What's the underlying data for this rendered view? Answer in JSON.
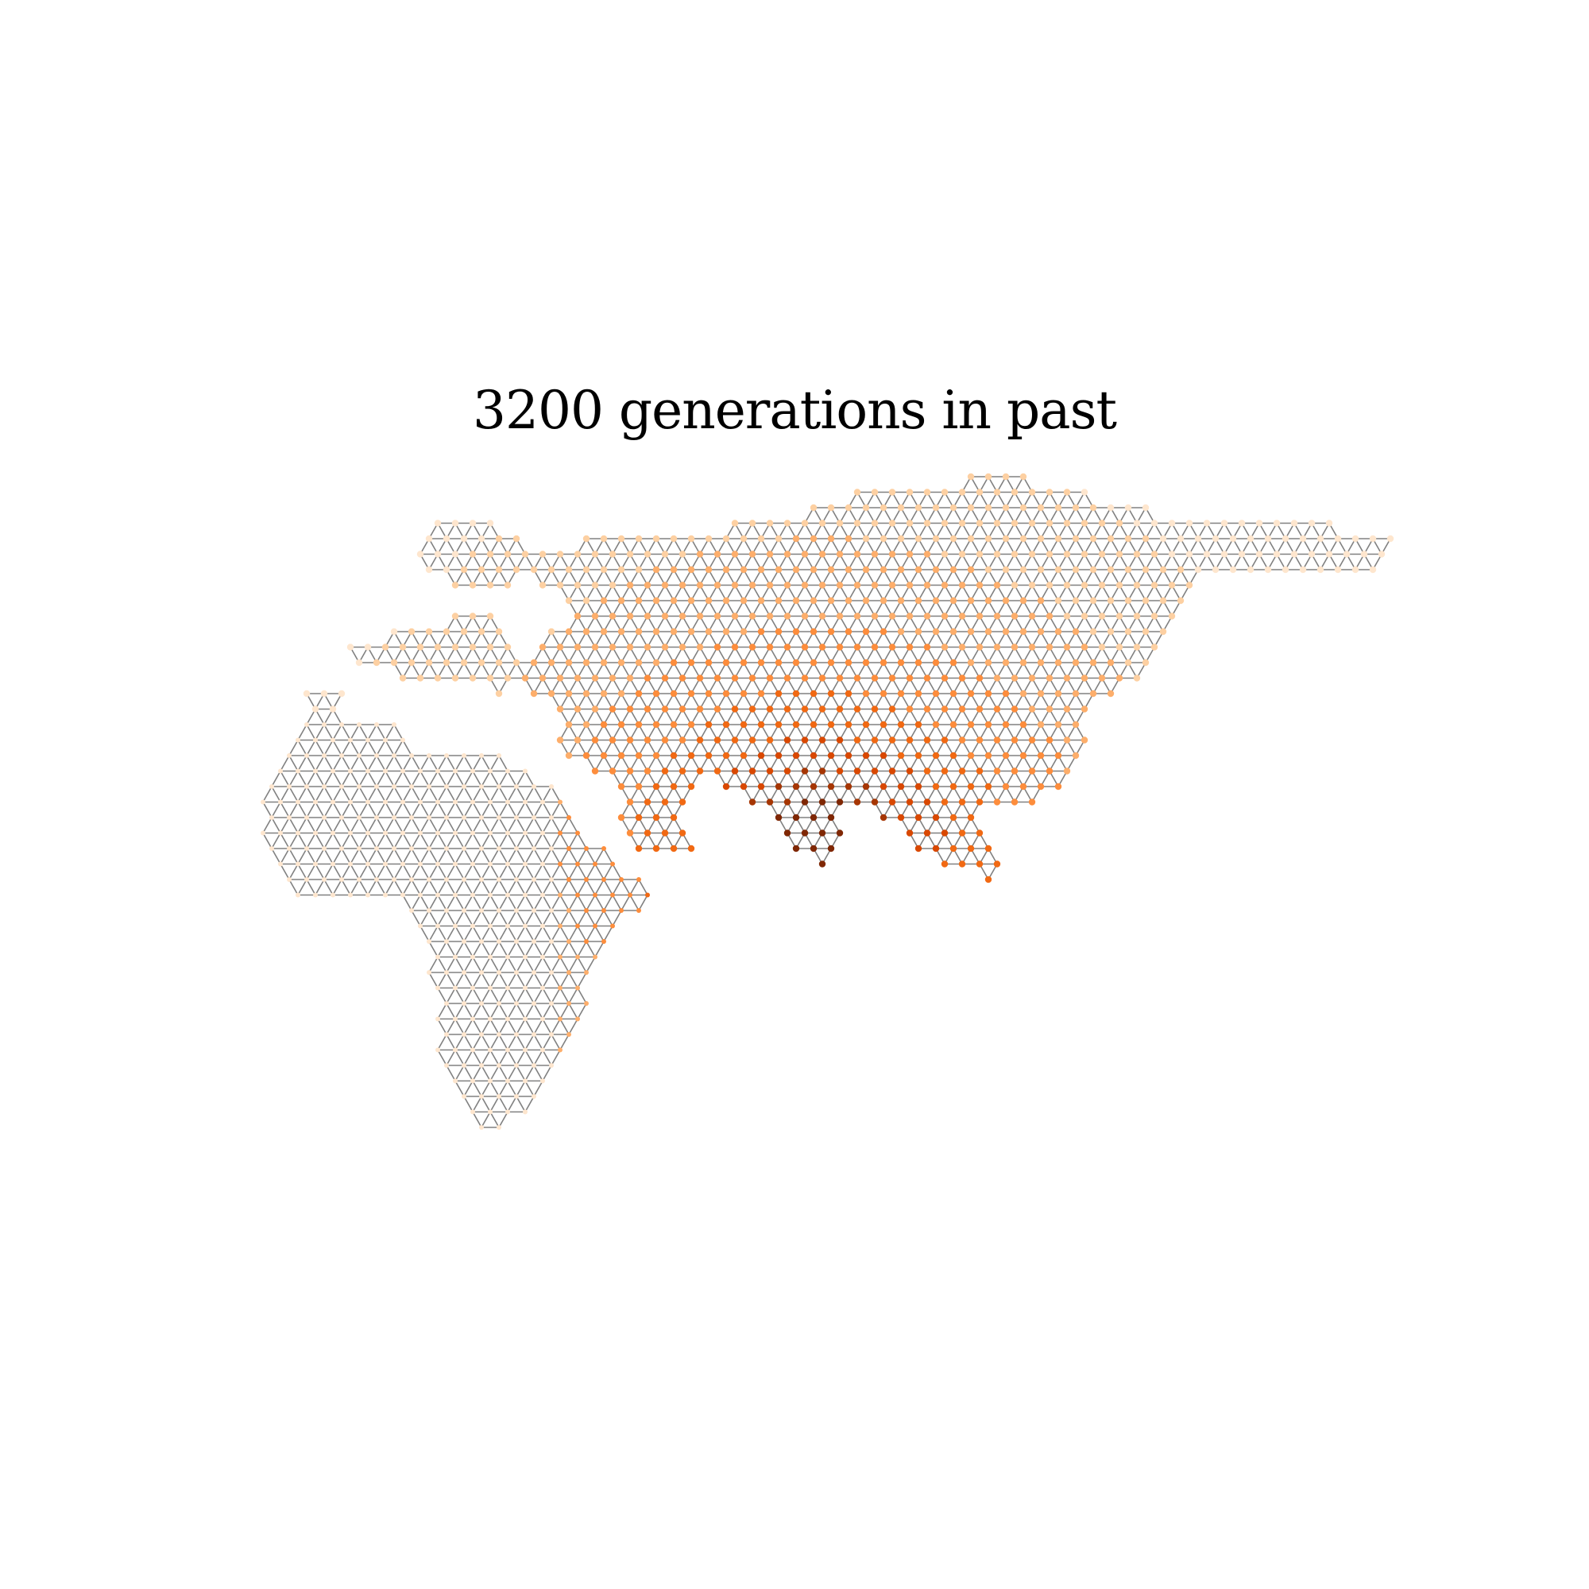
{
  "title": "3200 generations in past",
  "colors": {
    "background": "#ffffff",
    "edge": "#808080",
    "levels": [
      "#fee6ce",
      "#fdd0a2",
      "#fdae6b",
      "#fd8d3c",
      "#f16913",
      "#d94801",
      "#a63603",
      "#7f2704"
    ]
  },
  "chart_data": {
    "type": "network-map",
    "description": "Triangular lattice of demes over Africa and Eurasia shaded by ancestry at the given time",
    "color_scale": "light orange (low) to dark brown (high)"
  }
}
